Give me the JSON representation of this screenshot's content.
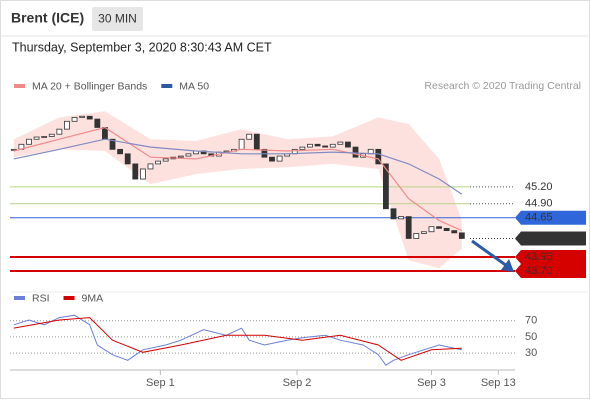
{
  "header": {
    "title": "Brent (ICE)",
    "interval": "30 MIN",
    "timestamp": "Thursday, September 3, 2020 8:30:43 AM CET",
    "credit": "Research © 2020 Trading Central"
  },
  "chart_data": [
    {
      "type": "candlestick",
      "values": [
        45.87,
        45.96,
        46.05,
        46.09,
        46.1,
        46.14,
        46.23,
        46.37,
        46.44,
        46.46,
        46.41,
        46.26,
        46.05,
        45.87,
        45.79,
        45.61,
        45.34,
        45.52,
        45.61,
        45.66,
        45.7,
        45.73,
        45.75,
        45.79,
        45.84,
        45.79,
        45.75,
        45.82,
        45.84,
        45.87,
        46.05,
        46.14,
        45.87,
        45.73,
        45.66,
        45.75,
        45.79,
        45.87,
        45.91,
        45.96,
        45.93,
        45.91,
        45.96,
        46.0,
        45.91,
        45.73,
        45.79,
        45.87,
        45.61,
        44.81,
        44.63,
        44.67,
        44.28,
        44.37,
        44.4,
        44.49,
        44.46,
        44.42,
        44.38,
        44.28
      ],
      "up_color": "#ffffff",
      "down_color": "#333333",
      "xlim": [
        -0.5,
        66
      ],
      "ylim": [
        43.45,
        46.75
      ],
      "series": [
        {
          "name": "MA 20 + Bollinger Bands",
          "color": "#f08a8a",
          "band_color": "#fde1df",
          "x": [
            0,
            6,
            12,
            18,
            24,
            30,
            36,
            42,
            48,
            52,
            56,
            59
          ],
          "values": [
            45.84,
            46.05,
            46.26,
            45.73,
            45.7,
            45.87,
            45.84,
            45.87,
            45.7,
            44.99,
            44.6,
            44.42
          ],
          "upper": [
            46.05,
            46.44,
            46.55,
            46.05,
            46.02,
            46.23,
            46.05,
            46.1,
            46.44,
            46.32,
            45.7,
            44.6
          ],
          "lower": [
            45.73,
            45.87,
            45.84,
            45.25,
            45.43,
            45.52,
            45.55,
            45.61,
            45.52,
            43.89,
            43.75,
            44.1
          ]
        },
        {
          "name": "MA 50",
          "color": "#2c5aa0",
          "line_color": "#7f8bc0",
          "x": [
            0,
            6,
            12,
            18,
            24,
            30,
            36,
            42,
            48,
            52,
            56,
            59
          ],
          "values": [
            45.7,
            45.87,
            46.05,
            45.91,
            45.84,
            45.79,
            45.79,
            45.82,
            45.79,
            45.61,
            45.34,
            45.07
          ]
        }
      ],
      "levels": [
        {
          "value": 45.2,
          "label": "45.20",
          "color": "#6aa72b",
          "kind": "target"
        },
        {
          "value": 44.9,
          "label": "44.90",
          "color": "#6aa72b",
          "kind": "target"
        },
        {
          "value": 44.65,
          "label": "44.65",
          "color": "#2f66d9",
          "kind": "pivot"
        },
        {
          "value": 44.28,
          "label": "44.28",
          "color": "#333333",
          "kind": "price"
        },
        {
          "value": 43.95,
          "label": "43.95",
          "color": "#d50000",
          "kind": "support"
        },
        {
          "value": 43.7,
          "label": "43.70",
          "color": "#d50000",
          "kind": "support"
        }
      ]
    },
    {
      "type": "line",
      "xlim": [
        -0.5,
        66
      ],
      "ylim": [
        9,
        102
      ],
      "yticks": [
        70,
        50,
        30
      ],
      "xticks": [
        {
          "value": 19.3,
          "label": "Sep 1"
        },
        {
          "value": 37.3,
          "label": "Sep 2"
        },
        {
          "value": 55,
          "label": "Sep 3"
        },
        {
          "value": 63.8,
          "label": "Sep 13"
        }
      ],
      "series": [
        {
          "name": "RSI",
          "color": "#6b7fd7",
          "x": [
            0,
            2,
            4,
            6,
            8,
            10,
            11,
            13,
            15,
            17,
            20,
            22,
            25,
            28,
            30,
            31,
            33,
            36,
            38,
            41,
            43,
            46,
            48,
            49,
            50,
            52,
            54,
            56,
            58,
            59
          ],
          "values": [
            65,
            71,
            65,
            74,
            77,
            65,
            40,
            28,
            21,
            34,
            40,
            46,
            59,
            52,
            61,
            46,
            40,
            46,
            49,
            52,
            46,
            40,
            28,
            15,
            21,
            28,
            34,
            40,
            36,
            34
          ]
        },
        {
          "name": "9MA",
          "color": "#d50000",
          "x": [
            0,
            6,
            10,
            13,
            17,
            22,
            28,
            33,
            38,
            43,
            48,
            51,
            55,
            59
          ],
          "values": [
            61,
            71,
            74,
            46,
            31,
            40,
            52,
            52,
            46,
            52,
            40,
            21,
            34,
            36
          ]
        }
      ]
    }
  ]
}
